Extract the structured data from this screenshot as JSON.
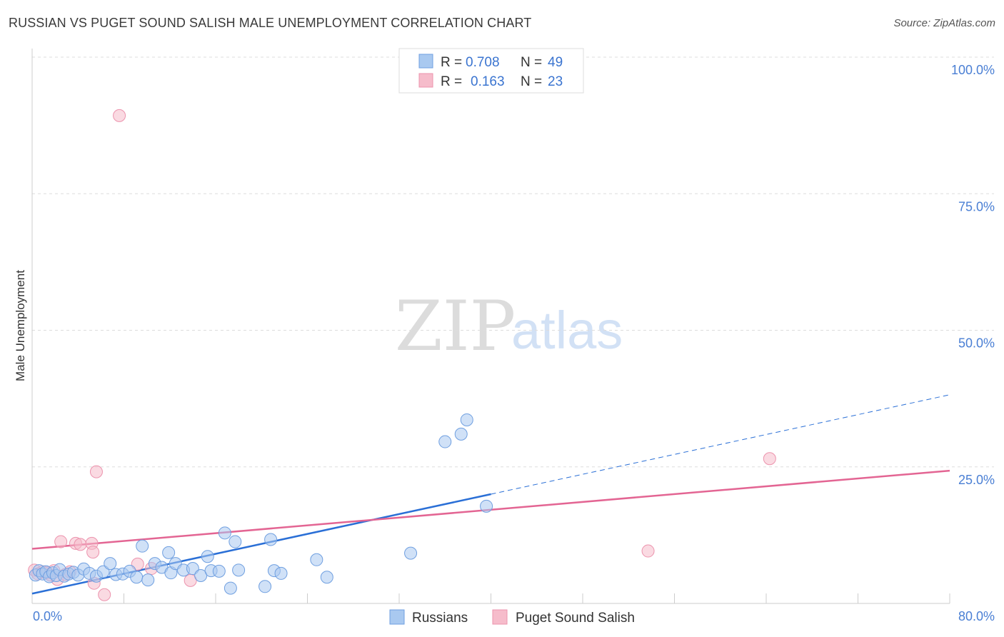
{
  "header": {
    "title": "RUSSIAN VS PUGET SOUND SALISH MALE UNEMPLOYMENT CORRELATION CHART",
    "source": "Source: ZipAtlas.com"
  },
  "watermark": {
    "zip": "ZIP",
    "atlas": "atlas"
  },
  "colors": {
    "russians_fill": "#a9c9f0",
    "russians_stroke": "#6f9fe0",
    "russians_line": "#2a6fd6",
    "salish_fill": "#f6bccb",
    "salish_stroke": "#ec93ad",
    "salish_line": "#e36593",
    "tick_color": "#4a7fd4",
    "grid_color": "#dddddd"
  },
  "legend": {
    "rows": [
      {
        "r_label": "R =",
        "r_value": "0.708",
        "n_label": "N =",
        "n_value": "49"
      },
      {
        "r_label": "R =",
        "r_value": "0.163",
        "n_label": "N =",
        "n_value": "23"
      }
    ]
  },
  "chart_data": {
    "type": "scatter",
    "title": "RUSSIAN VS PUGET SOUND SALISH MALE UNEMPLOYMENT CORRELATION CHART",
    "xlabel": "",
    "ylabel": "Male Unemployment",
    "xlim": [
      0,
      80
    ],
    "ylim": [
      0,
      100
    ],
    "x_tick_labels": [
      "0.0%",
      "80.0%"
    ],
    "y_ticks": [
      25,
      50,
      75,
      100
    ],
    "y_tick_labels": [
      "25.0%",
      "50.0%",
      "75.0%",
      "100.0%"
    ],
    "series": [
      {
        "name": "Russians",
        "r": 0.708,
        "n": 49,
        "points": [
          [
            0.3,
            5.2
          ],
          [
            0.6,
            6.0
          ],
          [
            0.9,
            5.4
          ],
          [
            1.2,
            5.8
          ],
          [
            1.5,
            4.9
          ],
          [
            1.8,
            5.6
          ],
          [
            2.1,
            5.1
          ],
          [
            2.4,
            6.2
          ],
          [
            2.8,
            5.0
          ],
          [
            3.2,
            5.4
          ],
          [
            3.6,
            5.7
          ],
          [
            4.0,
            5.2
          ],
          [
            4.5,
            6.3
          ],
          [
            5.0,
            5.5
          ],
          [
            5.6,
            5.0
          ],
          [
            6.2,
            5.8
          ],
          [
            6.8,
            7.3
          ],
          [
            7.3,
            5.3
          ],
          [
            7.9,
            5.4
          ],
          [
            8.5,
            5.9
          ],
          [
            9.1,
            4.8
          ],
          [
            9.6,
            10.5
          ],
          [
            10.1,
            4.3
          ],
          [
            10.7,
            7.3
          ],
          [
            11.3,
            6.6
          ],
          [
            11.9,
            9.3
          ],
          [
            12.1,
            5.6
          ],
          [
            12.5,
            7.3
          ],
          [
            13.2,
            6.1
          ],
          [
            14.0,
            6.4
          ],
          [
            14.7,
            5.1
          ],
          [
            15.3,
            8.6
          ],
          [
            15.6,
            6.0
          ],
          [
            16.3,
            5.9
          ],
          [
            16.8,
            12.9
          ],
          [
            17.3,
            2.8
          ],
          [
            17.7,
            11.3
          ],
          [
            18.0,
            6.1
          ],
          [
            20.3,
            3.1
          ],
          [
            20.8,
            11.7
          ],
          [
            21.1,
            6.0
          ],
          [
            21.7,
            5.5
          ],
          [
            24.8,
            8.0
          ],
          [
            25.7,
            4.8
          ],
          [
            33.0,
            9.2
          ],
          [
            36.0,
            29.6
          ],
          [
            37.4,
            31.0
          ],
          [
            37.9,
            33.6
          ],
          [
            39.6,
            17.8
          ]
        ],
        "trend": {
          "x_start": 0,
          "y_start": 1.8,
          "x_solid_end": 40,
          "y_solid_end": 20.0,
          "x_dash_end": 80,
          "y_dash_end": 38.2
        }
      },
      {
        "name": "Puget Sound Salish",
        "r": 0.163,
        "n": 23,
        "points": [
          [
            0.2,
            6.1
          ],
          [
            0.5,
            5.4
          ],
          [
            0.9,
            5.8
          ],
          [
            1.3,
            5.6
          ],
          [
            1.6,
            5.2
          ],
          [
            1.9,
            6.0
          ],
          [
            2.2,
            4.4
          ],
          [
            2.5,
            11.3
          ],
          [
            2.9,
            5.3
          ],
          [
            3.3,
            5.8
          ],
          [
            3.8,
            11.0
          ],
          [
            4.2,
            10.8
          ],
          [
            5.2,
            11.0
          ],
          [
            5.3,
            9.4
          ],
          [
            5.4,
            3.7
          ],
          [
            5.6,
            24.1
          ],
          [
            6.3,
            1.6
          ],
          [
            7.6,
            89.3
          ],
          [
            9.2,
            7.2
          ],
          [
            10.4,
            6.4
          ],
          [
            13.8,
            4.2
          ],
          [
            53.7,
            9.6
          ],
          [
            64.3,
            26.5
          ]
        ],
        "trend": {
          "x_start": 0,
          "y_start": 10.0,
          "x_end": 80,
          "y_end": 24.3
        }
      }
    ]
  }
}
